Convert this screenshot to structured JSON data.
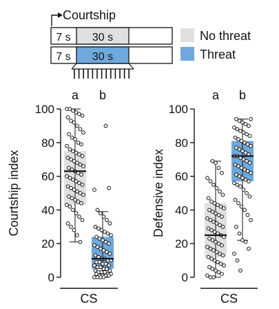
{
  "schematic": {
    "header_label": "Courtship",
    "rows": [
      {
        "pre": "7 s",
        "main": "30 s",
        "condition": "No threat",
        "color": "#e0e0e0"
      },
      {
        "pre": "7 s",
        "main": "30 s",
        "condition": "Threat",
        "color": "#6fa8dc"
      }
    ],
    "legend": [
      {
        "label": "No threat",
        "color": "#e0e0e0"
      },
      {
        "label": "Threat",
        "color": "#6fa8dc"
      }
    ]
  },
  "chart_data": [
    {
      "type": "box-dot",
      "ylabel": "Courtship index",
      "xlabel": "CS",
      "ylim": [
        0,
        100
      ],
      "yticks": [
        0,
        20,
        40,
        60,
        80,
        100
      ],
      "groups": [
        {
          "condition": "No threat",
          "letter": "a",
          "color": "#e0e0e0",
          "q1": 43,
          "median": 63,
          "q3": 75,
          "whisker_low": 21,
          "whisker_high": 100,
          "points": [
            100,
            100,
            99,
            98,
            97,
            96,
            95,
            93,
            92,
            90,
            88,
            86,
            85,
            83,
            82,
            80,
            79,
            78,
            76,
            75,
            74,
            73,
            72,
            71,
            70,
            69,
            68,
            67,
            66,
            65,
            64,
            63,
            62,
            61,
            60,
            59,
            58,
            57,
            56,
            55,
            54,
            53,
            52,
            51,
            50,
            49,
            48,
            47,
            46,
            45,
            44,
            43,
            42,
            40,
            38,
            36,
            34,
            32,
            30,
            28,
            25,
            21
          ]
        },
        {
          "condition": "Threat",
          "letter": "b",
          "color": "#6fa8dc",
          "q1": 5,
          "median": 11,
          "q3": 24,
          "whisker_low": 0,
          "whisker_high": 39,
          "points": [
            90,
            53,
            52,
            40,
            38,
            36,
            34,
            32,
            30,
            29,
            28,
            27,
            26,
            25,
            24,
            23,
            22,
            21,
            20,
            19,
            18,
            17,
            16,
            15,
            14,
            13,
            12,
            11,
            11,
            10,
            10,
            9,
            9,
            8,
            8,
            7,
            7,
            6,
            6,
            5,
            5,
            4,
            4,
            3,
            3,
            3,
            2,
            2,
            2,
            1,
            1,
            1,
            1,
            0,
            0,
            0,
            0
          ]
        }
      ]
    },
    {
      "type": "box-dot",
      "ylabel": "Defensive index",
      "xlabel": "CS",
      "ylim": [
        0,
        100
      ],
      "yticks": [
        0,
        20,
        40,
        60,
        80,
        100
      ],
      "groups": [
        {
          "condition": "No threat",
          "letter": "a",
          "color": "#e0e0e0",
          "q1": 12,
          "median": 25,
          "q3": 44,
          "whisker_low": 0,
          "whisker_high": 69,
          "points": [
            69,
            68,
            65,
            62,
            59,
            57,
            55,
            53,
            51,
            49,
            47,
            45,
            44,
            43,
            42,
            41,
            40,
            39,
            38,
            37,
            36,
            35,
            34,
            33,
            32,
            31,
            30,
            29,
            28,
            27,
            26,
            25,
            24,
            23,
            22,
            21,
            20,
            19,
            18,
            17,
            16,
            15,
            14,
            13,
            12,
            11,
            10,
            9,
            8,
            7,
            6,
            5,
            4,
            3,
            2,
            1,
            0,
            0
          ]
        },
        {
          "condition": "Threat",
          "letter": "b",
          "color": "#6fa8dc",
          "q1": 57,
          "median": 72,
          "q3": 81,
          "whisker_low": 22,
          "whisker_high": 94,
          "points": [
            94,
            94,
            93,
            92,
            91,
            90,
            89,
            88,
            87,
            86,
            85,
            84,
            83,
            82,
            81,
            80,
            79,
            78,
            77,
            76,
            75,
            74,
            73,
            72,
            72,
            71,
            70,
            69,
            68,
            67,
            66,
            65,
            64,
            63,
            62,
            61,
            60,
            59,
            58,
            57,
            56,
            55,
            54,
            52,
            50,
            48,
            46,
            44,
            42,
            40,
            37,
            34,
            30,
            26,
            22,
            21,
            17,
            14,
            10,
            4
          ]
        }
      ]
    }
  ]
}
